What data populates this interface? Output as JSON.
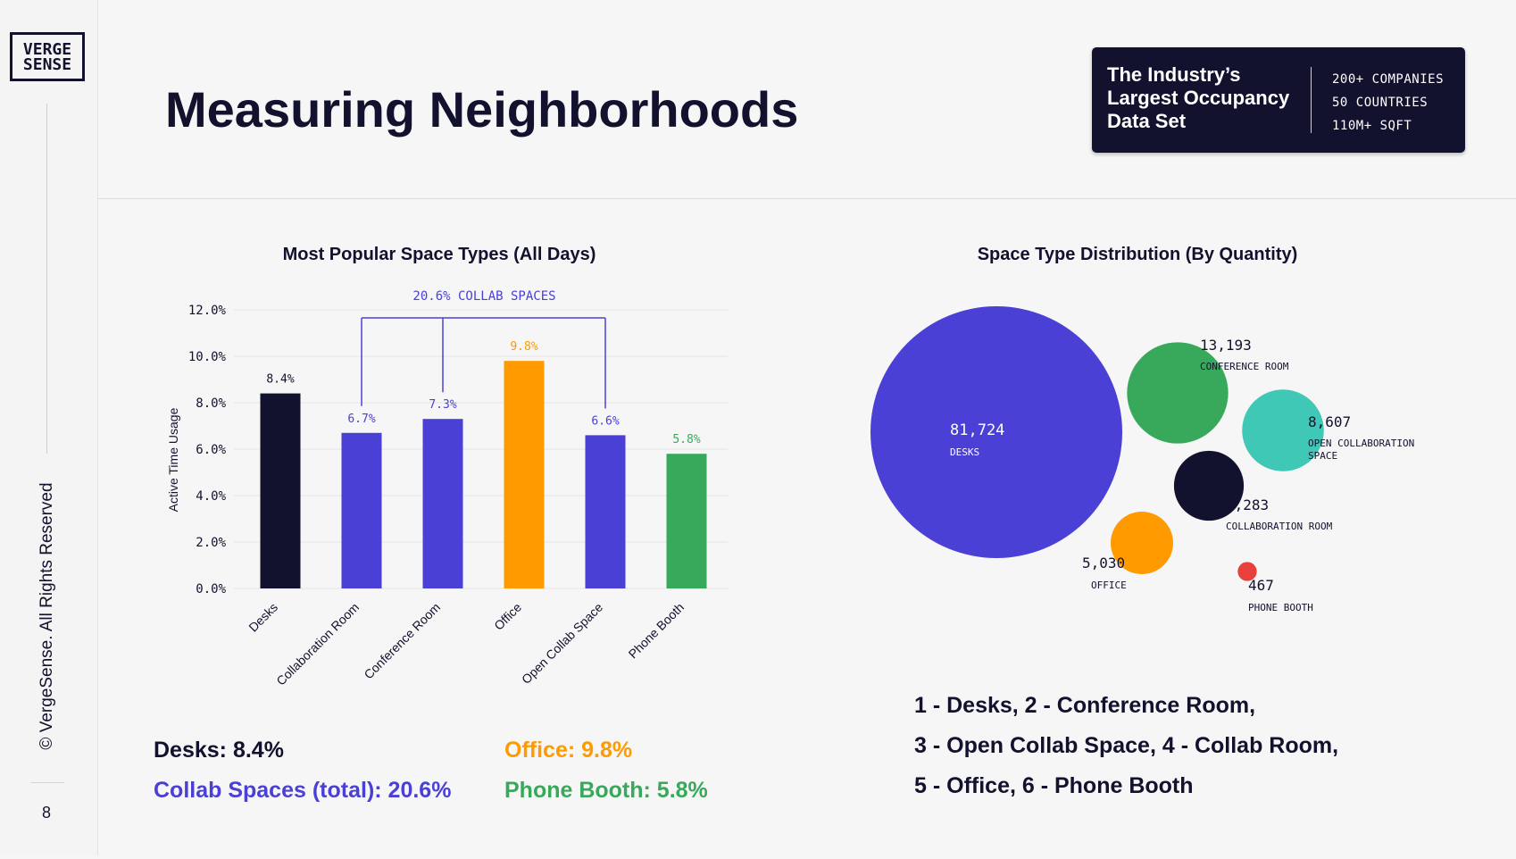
{
  "sidebar": {
    "logo_line1": "VERGE",
    "logo_line2": "SENSE",
    "copyright": "© VergeSense. All Rights Reserved",
    "page_number": "8"
  },
  "header": {
    "title": "Measuring Neighborhoods"
  },
  "badge": {
    "lines": [
      "The Industry’s",
      "Largest Occupancy",
      "Data Set"
    ],
    "stats": [
      "200+ COMPANIES",
      "50 COUNTRIES",
      "110M+ SQFT"
    ]
  },
  "bar_chart": {
    "title": "Most Popular Space Types (All Days)"
  },
  "bubble_chart": {
    "title": "Space Type Distribution (By Quantity)"
  },
  "summary": {
    "desks": "Desks: 8.4%",
    "collab": "Collab Spaces (total): 20.6%",
    "office": "Office: 9.8%",
    "phone": "Phone Booth: 5.8%"
  },
  "key": {
    "line1": "1 - Desks, 2 - Conference Room,",
    "line2": "3 - Open Collab Space, 4 - Collab Room,",
    "line3": "5 - Office, 6 - Phone Booth"
  },
  "colors": {
    "navy": "#12112e",
    "indigo": "#4a40d6",
    "orange": "#ff9a00",
    "green": "#38a95a",
    "teal": "#3fc8b5"
  },
  "chart_data": [
    {
      "type": "bar",
      "title": "Most Popular Space Types (All Days)",
      "ylabel": "Active Time Usage",
      "xlabel": "",
      "ylim": [
        0,
        12
      ],
      "yticks": [
        "0.0%",
        "2.0%",
        "4.0%",
        "6.0%",
        "8.0%",
        "10.0%",
        "12.0%"
      ],
      "categories": [
        "Desks",
        "Collaboration Room",
        "Conference Room",
        "Office",
        "Open Collab Space",
        "Phone Booth"
      ],
      "values": [
        8.4,
        6.7,
        7.3,
        9.8,
        6.6,
        5.8
      ],
      "value_labels": [
        "8.4%",
        "6.7%",
        "7.3%",
        "9.8%",
        "6.6%",
        "5.8%"
      ],
      "colors": [
        "#12112e",
        "#4a40d6",
        "#4a40d6",
        "#ff9a00",
        "#4a40d6",
        "#38a95a"
      ],
      "annotation": "20.6% COLLAB SPACES",
      "grid": true
    },
    {
      "type": "bubble",
      "title": "Space Type Distribution (By Quantity)",
      "items": [
        {
          "label": "DESKS",
          "value": 81724,
          "display": "81,724",
          "color": "#4a40d6"
        },
        {
          "label": "CONFERENCE ROOM",
          "value": 13193,
          "display": "13,193",
          "color": "#38a95a"
        },
        {
          "label": "OPEN COLLABORATION SPACE",
          "value": 8607,
          "display": "8,607",
          "color": "#3fc8b5"
        },
        {
          "label": "COLLABORATION ROOM",
          "value": 6283,
          "display": "6,283",
          "color": "#12112e"
        },
        {
          "label": "OFFICE",
          "value": 5030,
          "display": "5,030",
          "color": "#ff9a00"
        },
        {
          "label": "PHONE BOOTH",
          "value": 467,
          "display": "467",
          "color": "#e8413c"
        }
      ]
    }
  ]
}
